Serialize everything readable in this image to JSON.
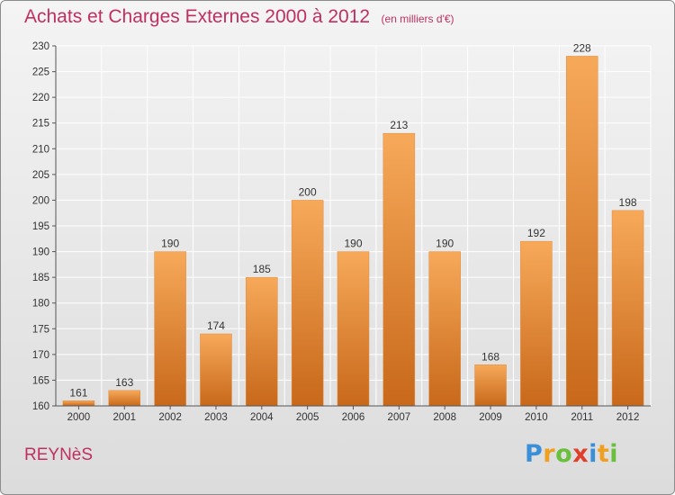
{
  "chart_data": {
    "type": "bar",
    "title": "Achats et Charges Externes 2000 à 2012",
    "subtitle": "(en milliers d'€)",
    "xlabel": "",
    "ylabel": "",
    "ylim": [
      160,
      230
    ],
    "yticks": [
      "160",
      "165",
      "170",
      "175",
      "180",
      "185",
      "190",
      "195",
      "200",
      "205",
      "210",
      "215",
      "220",
      "225",
      "230"
    ],
    "grid": true,
    "categories": [
      "2000",
      "2001",
      "2002",
      "2003",
      "2004",
      "2005",
      "2006",
      "2007",
      "2008",
      "2009",
      "2010",
      "2011",
      "2012"
    ],
    "values": [
      161,
      163,
      190,
      174,
      185,
      200,
      190,
      213,
      190,
      168,
      192,
      228,
      198
    ],
    "labels": [
      "161",
      "163",
      "190",
      "174",
      "185",
      "200",
      "190",
      "213",
      "190",
      "168",
      "192",
      "228",
      "198"
    ]
  },
  "footer": {
    "place": "REYNèS",
    "brand_letters": [
      "P",
      "r",
      "o",
      "x",
      "i",
      "t",
      "i"
    ]
  },
  "colors": {
    "title": "#bf3060",
    "bar_light": "#f7a95a",
    "bar_dark": "#c8681a",
    "axis": "#555555",
    "grid": "#ffffff",
    "brand": [
      "#3a8fd8",
      "#f0a020",
      "#6abf3c",
      "#e0402a",
      "#3a8fd8",
      "#f0a020",
      "#6abf3c"
    ]
  }
}
